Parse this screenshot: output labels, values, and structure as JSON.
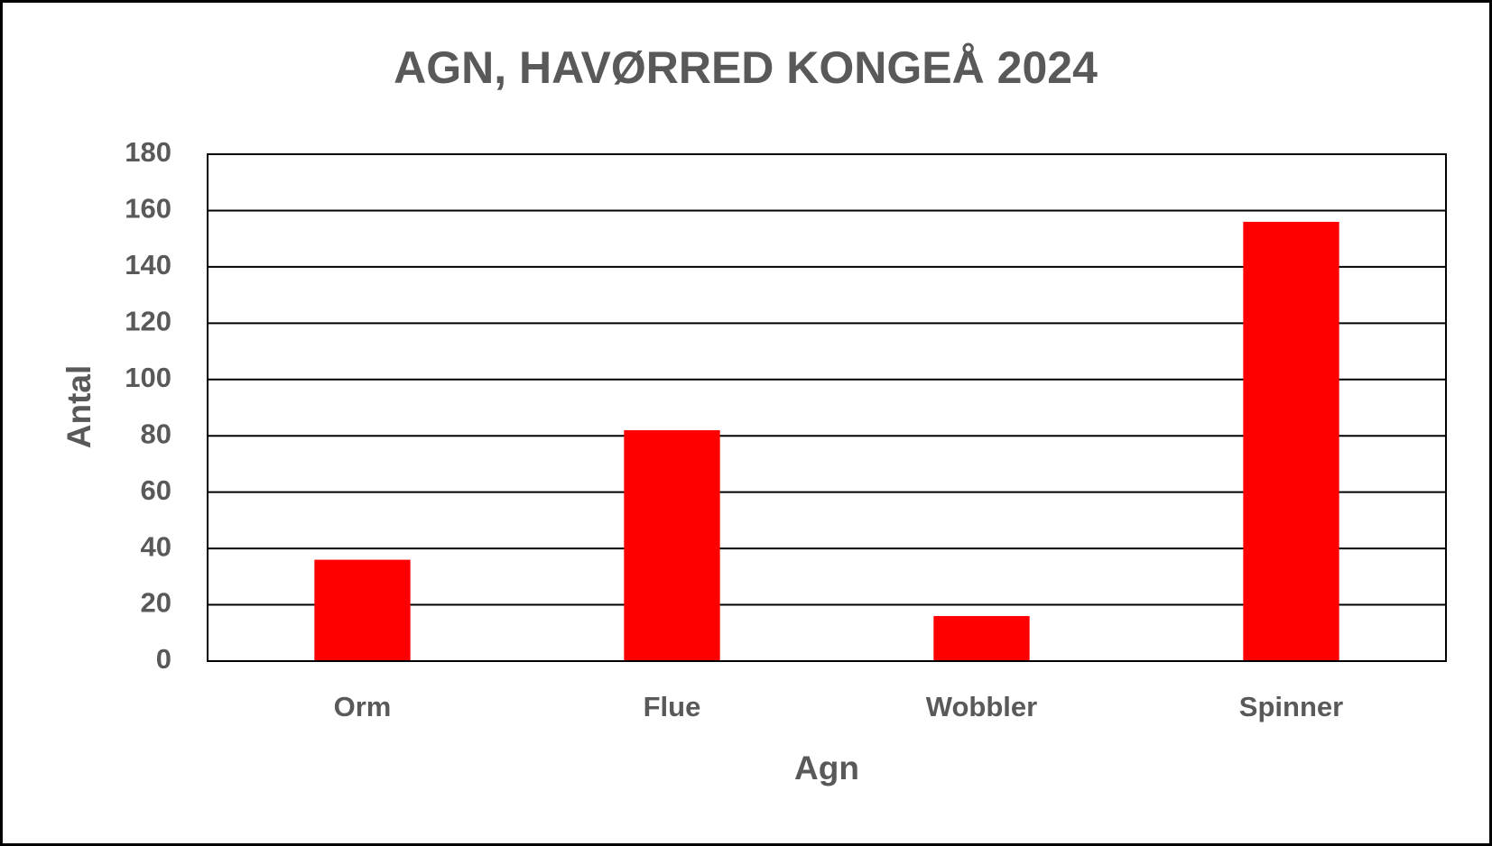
{
  "chart_data": {
    "type": "bar",
    "title": "AGN, HAVØRRED KONGEÅ 2024",
    "x_label": "Agn",
    "y_label": "Antal",
    "categories": [
      "Orm",
      "Flue",
      "Wobbler",
      "Spinner"
    ],
    "values": [
      36,
      82,
      16,
      156
    ],
    "color": "#ff0000",
    "ylim": [
      0,
      180
    ],
    "yticks": [
      0,
      20,
      40,
      60,
      80,
      100,
      120,
      140,
      160,
      180
    ],
    "grid": true
  }
}
